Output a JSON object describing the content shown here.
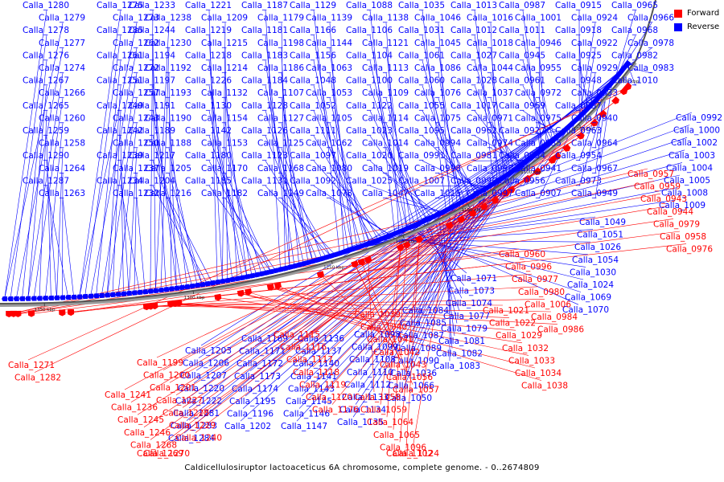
{
  "legend": {
    "forward_label": "Forward",
    "reverse_label": "Reverse",
    "forward_color": "#ff0000",
    "reverse_color": "#0000ff"
  },
  "caption": "Caldicellulosiruptor lactoaceticus 6A chromosome, complete genome. - 0..2674809",
  "ticks": [
    "1000 kbp",
    "1050 kbp",
    "1100 kbp",
    "1150 kbp",
    "1200 kbp",
    "1250 kbp",
    "1300 kbp",
    "1350 kbp"
  ],
  "reverse_labels": [
    "Calla_1280",
    "Calla_1279",
    "Calla_1278",
    "Calla_1277",
    "Calla_1276",
    "Calla_1274",
    "Calla_1267",
    "Calla_1266",
    "Calla_1265",
    "Calla_1260",
    "Calla_1259",
    "Calla_1258",
    "Calla_1290",
    "Calla_1264",
    "Calla_1287",
    "Calla_1263",
    "Calla_1275",
    "Calla_1273",
    "Calla_1285",
    "Calla_1262",
    "Calla_1261",
    "Calla_1272",
    "Calla_1251",
    "Calla_1257",
    "Calla_1249",
    "Calla_1243",
    "Calla_1242",
    "Calla_1250",
    "Calla_1239",
    "Calla_1237",
    "Calla_1234",
    "Calla_1232",
    "Calla_1233",
    "Calla_1238",
    "Calla_1244",
    "Calla_1230",
    "Calla_1194",
    "Calla_1192",
    "Calla_1197",
    "Calla_1193",
    "Calla_1191",
    "Calla_1190",
    "Calla_1189",
    "Calla_1188",
    "Calla_1217",
    "Calla_1205",
    "Calla_1204",
    "Calla_1216",
    "Calla_1221",
    "Calla_1209",
    "Calla_1219",
    "Calla_1215",
    "Calla_1218",
    "Calla_1214",
    "Calla_1226",
    "Calla_1132",
    "Calla_1130",
    "Calla_1154",
    "Calla_1142",
    "Calla_1153",
    "Calla_1180",
    "Calla_1170",
    "Calla_1185",
    "Calla_1182",
    "Calla_1187",
    "Calla_1179",
    "Calla_1181",
    "Calla_1198",
    "Calla_1183",
    "Calla_1186",
    "Calla_1184",
    "Calla_1107",
    "Calla_1128",
    "Calla_1127",
    "Calla_1126",
    "Calla_1125",
    "Calla_1123",
    "Calla_1168",
    "Calla_1131",
    "Calla_1149",
    "Calla_1129",
    "Calla_1139",
    "Calla_1166",
    "Calla_1144",
    "Calla_1156",
    "Calla_1063",
    "Calla_1048",
    "Calla_1053",
    "Calla_1052",
    "Calla_1105",
    "Calla_1111",
    "Calla_1062",
    "Calla_1097",
    "Calla_1080",
    "Calla_1092",
    "Calla_1078",
    "Calla_1088",
    "Calla_1138",
    "Calla_1106",
    "Calla_1121",
    "Calla_1104",
    "Calla_1113",
    "Calla_1100",
    "Calla_1109",
    "Calla_1122",
    "Calla_1114",
    "Calla_1023",
    "Calla_1014",
    "Calla_1020",
    "Calla_1019",
    "Calla_1025",
    "Calla_1047",
    "Calla_1035",
    "Calla_1046",
    "Calla_1031",
    "Calla_1045",
    "Calla_1061",
    "Calla_1086",
    "Calla_1060",
    "Calla_1076",
    "Calla_1055",
    "Calla_1075",
    "Calla_1095",
    "Calla_0994",
    "Calla_0991",
    "Calla_0998",
    "Calla_1007",
    "Calla_1015",
    "Calla_1013",
    "Calla_1016",
    "Calla_1012",
    "Calla_1018",
    "Calla_1027",
    "Calla_1044",
    "Calla_1028",
    "Calla_1037",
    "Calla_1017",
    "Calla_0971",
    "Calla_0962",
    "Calla_0974",
    "Calla_0981",
    "Calla_0993",
    "Calla_0990",
    "Calla_0997",
    "Calla_0987",
    "Calla_1001",
    "Calla_1011",
    "Calla_0946",
    "Calla_0945",
    "Calla_0955",
    "Calla_0961",
    "Calla_0972",
    "Calla_0969",
    "Calla_0975",
    "Calla_0927",
    "Calla_0935",
    "Calla_0934",
    "Calla_0941",
    "Calla_0956",
    "Calla_0907",
    "Calla_0915",
    "Calla_0924",
    "Calla_0918",
    "Calla_0922",
    "Calla_0925",
    "Calla_0929",
    "Calla_0948",
    "Calla_0933",
    "Calla_0937",
    "Calla_0940",
    "Calla_0963",
    "Calla_0964",
    "Calla_0954",
    "Calla_0967",
    "Calla_0973",
    "Calla_0949",
    "Calla_0965",
    "Calla_0966",
    "Calla_0968",
    "Calla_0978",
    "Calla_0982",
    "Calla_0983",
    "Calla_1010",
    "Calla_0992",
    "Calla_1000",
    "Calla_1002",
    "Calla_1003",
    "Calla_1004",
    "Calla_1005",
    "Calla_1008",
    "Calla_1009",
    "Calla_1049",
    "Calla_1051",
    "Calla_1026",
    "Calla_1054",
    "Calla_1030",
    "Calla_1024",
    "Calla_1069",
    "Calla_1070",
    "Calla_1071",
    "Calla_1073",
    "Calla_1074",
    "Calla_1077",
    "Calla_1079",
    "Calla_1081",
    "Calla_1082",
    "Calla_1083",
    "Calla_1084",
    "Calla_1085",
    "Calla_1087",
    "Calla_1089",
    "Calla_1090",
    "Calla_1036",
    "Calla_1066",
    "Calla_1050",
    "Calla_1098",
    "Calla_1099",
    "Calla_1108",
    "Calla_1110",
    "Calla_1112",
    "Calla_1133",
    "Calla_1134",
    "Calla_1135",
    "Calla_1136",
    "Calla_1137",
    "Calla_1140",
    "Calla_1141",
    "Calla_1143",
    "Calla_1145",
    "Calla_1146",
    "Calla_1147",
    "Calla_1169",
    "Calla_1171",
    "Calla_1172",
    "Calla_1173",
    "Calla_1174",
    "Calla_1195",
    "Calla_1196",
    "Calla_1202",
    "Calla_1203",
    "Calla_1206",
    "Calla_1207",
    "Calla_1220",
    "Calla_1222",
    "Calla_1281",
    "Calla_1283",
    "Calla_1284"
  ],
  "forward_labels": [
    "Calla_0957",
    "Calla_0959",
    "Calla_0943",
    "Calla_0944",
    "Calla_0979",
    "Calla_0958",
    "Calla_0976",
    "Calla_0960",
    "Calla_0996",
    "Calla_0977",
    "Calla_0980",
    "Calla_1006",
    "Calla_0984",
    "Calla_0986",
    "Calla_1021",
    "Calla_1022",
    "Calla_1029",
    "Calla_1032",
    "Calla_1033",
    "Calla_1034",
    "Calla_1038",
    "Calla_1039",
    "Calla_1040",
    "Calla_1041",
    "Calla_1042",
    "Calla_1043",
    "Calla_1056",
    "Calla_1057",
    "Calla_1058",
    "Calla_1059",
    "Calla_1064",
    "Calla_1065",
    "Calla_1096",
    "Calla_1102",
    "Calla_1124",
    "Calla_1115",
    "Calla_1116",
    "Calla_1117",
    "Calla_1118",
    "Calla_1119",
    "Calla_1120",
    "Calla_1176",
    "Calla_1199",
    "Calla_1200",
    "Calla_1201",
    "Calla_1227",
    "Calla_1228",
    "Calla_1229",
    "Calla_1240",
    "Calla_1241",
    "Calla_1236",
    "Calla_1245",
    "Calla_1246",
    "Calla_1268",
    "Calla_1269",
    "Calla_1270",
    "Calla_1271",
    "Calla_1282"
  ]
}
